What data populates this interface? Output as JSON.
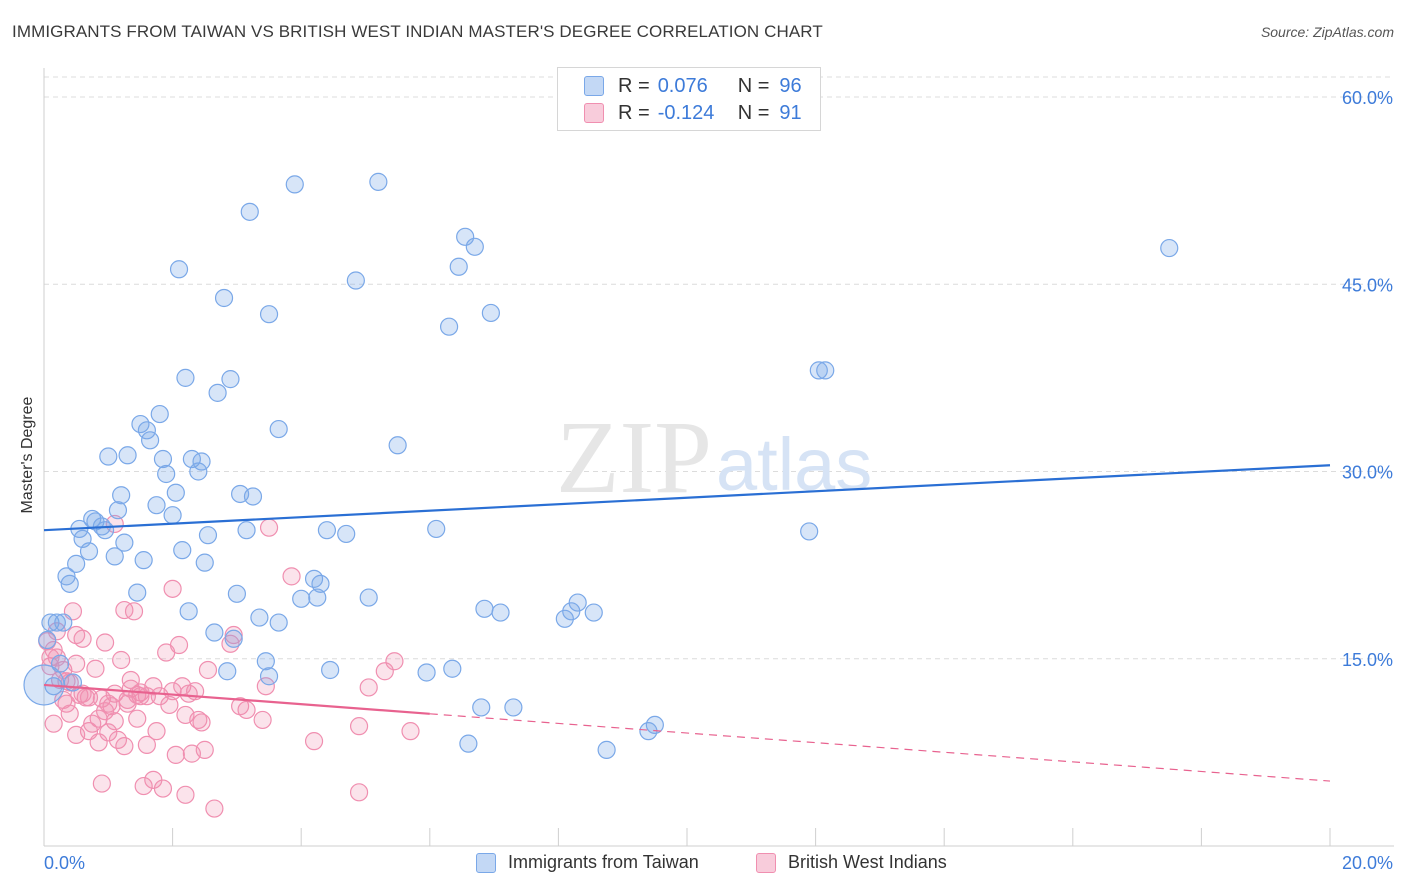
{
  "header": {
    "title": "IMMIGRANTS FROM TAIWAN VS BRITISH WEST INDIAN MASTER'S DEGREE CORRELATION CHART",
    "source": "Source: ZipAtlas.com"
  },
  "watermark": {
    "zip": "ZIP",
    "atlas": "atlas"
  },
  "colors": {
    "blue": "#7aa8e8",
    "blue_fill": "rgba(122,168,232,0.30)",
    "blue_line": "#2a6fd4",
    "pink": "#f08fb0",
    "pink_fill": "rgba(240,143,176,0.25)",
    "pink_line": "#e8628f",
    "axis_text": "#3d7bd9",
    "grid": "#dcdcdc"
  },
  "legend": {
    "rows": [
      {
        "r_label": "R =",
        "r_value": "0.076",
        "n_label": "N =",
        "n_value": "96"
      },
      {
        "r_label": "R =",
        "r_value": "-0.124",
        "n_label": "N =",
        "n_value": "91"
      }
    ],
    "series_names": [
      "Immigrants from Taiwan",
      "British West Indians"
    ]
  },
  "chart_data": {
    "type": "scatter",
    "title": "IMMIGRANTS FROM TAIWAN VS BRITISH WEST INDIAN MASTER'S DEGREE CORRELATION CHART",
    "xlabel": "",
    "ylabel": "Master's Degree",
    "xlim": [
      0,
      20
    ],
    "ylim": [
      0,
      60
    ],
    "x_tick_labels": [
      "0.0%",
      "20.0%"
    ],
    "y_ticks": [
      15,
      30,
      45,
      60
    ],
    "y_tick_labels": [
      "15.0%",
      "30.0%",
      "45.0%",
      "60.0%"
    ],
    "grid": true,
    "series": [
      {
        "name": "Immigrants from Taiwan",
        "R": 0.076,
        "N": 96,
        "trend": {
          "x": [
            0,
            20
          ],
          "y": [
            25.3,
            30.5
          ],
          "dashed_from": null
        },
        "points": [
          [
            0.1,
            17.9
          ],
          [
            0.2,
            17.9
          ],
          [
            0.3,
            17.9
          ],
          [
            0.35,
            21.6
          ],
          [
            0.4,
            21.0
          ],
          [
            0.5,
            22.6
          ],
          [
            0.55,
            25.4
          ],
          [
            0.6,
            24.6
          ],
          [
            0.7,
            23.6
          ],
          [
            0.75,
            26.2
          ],
          [
            0.8,
            26.0
          ],
          [
            0.9,
            25.6
          ],
          [
            0.95,
            25.3
          ],
          [
            1.0,
            31.2
          ],
          [
            1.1,
            23.2
          ],
          [
            1.15,
            26.9
          ],
          [
            1.2,
            28.1
          ],
          [
            1.25,
            24.3
          ],
          [
            1.3,
            31.3
          ],
          [
            1.45,
            20.3
          ],
          [
            1.5,
            33.8
          ],
          [
            1.55,
            22.9
          ],
          [
            1.6,
            33.3
          ],
          [
            1.65,
            32.5
          ],
          [
            1.75,
            27.3
          ],
          [
            1.8,
            34.6
          ],
          [
            1.85,
            31.0
          ],
          [
            1.9,
            29.8
          ],
          [
            2.0,
            26.5
          ],
          [
            2.05,
            28.3
          ],
          [
            2.1,
            46.2
          ],
          [
            2.15,
            23.7
          ],
          [
            2.2,
            37.5
          ],
          [
            2.25,
            18.8
          ],
          [
            2.3,
            31.0
          ],
          [
            2.4,
            30.0
          ],
          [
            2.45,
            30.8
          ],
          [
            2.5,
            22.7
          ],
          [
            2.55,
            24.9
          ],
          [
            2.65,
            17.1
          ],
          [
            2.7,
            36.3
          ],
          [
            2.8,
            43.9
          ],
          [
            2.85,
            14.0
          ],
          [
            2.9,
            37.4
          ],
          [
            2.95,
            16.6
          ],
          [
            3.0,
            20.2
          ],
          [
            3.05,
            28.2
          ],
          [
            3.15,
            25.3
          ],
          [
            3.2,
            50.8
          ],
          [
            3.25,
            28.0
          ],
          [
            3.35,
            18.3
          ],
          [
            3.45,
            14.8
          ],
          [
            3.5,
            13.6
          ],
          [
            3.5,
            42.6
          ],
          [
            3.65,
            17.9
          ],
          [
            3.65,
            33.4
          ],
          [
            3.9,
            53.0
          ],
          [
            4.0,
            19.8
          ],
          [
            4.2,
            21.4
          ],
          [
            4.25,
            19.9
          ],
          [
            4.3,
            21.0
          ],
          [
            4.4,
            25.3
          ],
          [
            4.45,
            14.1
          ],
          [
            4.7,
            25.0
          ],
          [
            4.85,
            45.3
          ],
          [
            5.05,
            19.9
          ],
          [
            5.2,
            53.2
          ],
          [
            5.5,
            32.1
          ],
          [
            5.95,
            13.9
          ],
          [
            6.1,
            25.4
          ],
          [
            6.3,
            41.6
          ],
          [
            6.35,
            14.2
          ],
          [
            6.45,
            46.4
          ],
          [
            6.55,
            48.8
          ],
          [
            6.6,
            8.2
          ],
          [
            6.7,
            48.0
          ],
          [
            6.8,
            11.1
          ],
          [
            6.85,
            19.0
          ],
          [
            6.95,
            42.7
          ],
          [
            7.1,
            18.7
          ],
          [
            7.3,
            11.1
          ],
          [
            8.1,
            18.2
          ],
          [
            8.2,
            18.8
          ],
          [
            8.3,
            19.5
          ],
          [
            8.55,
            18.7
          ],
          [
            8.75,
            7.7
          ],
          [
            9.4,
            9.2
          ],
          [
            9.5,
            9.7
          ],
          [
            11.9,
            25.2
          ],
          [
            12.05,
            38.1
          ],
          [
            12.15,
            38.1
          ],
          [
            17.5,
            47.9
          ],
          [
            0.15,
            12.8
          ],
          [
            0.25,
            14.6
          ],
          [
            0.05,
            16.5
          ],
          [
            0.45,
            13.1
          ]
        ]
      },
      {
        "name": "British West Indians",
        "R": -0.124,
        "N": 91,
        "trend": {
          "x": [
            0,
            20
          ],
          "y": [
            12.9,
            5.2
          ],
          "dashed_from": 6.0
        },
        "points": [
          [
            0.05,
            16.4
          ],
          [
            0.1,
            15.1
          ],
          [
            0.1,
            14.4
          ],
          [
            0.15,
            15.7
          ],
          [
            0.2,
            17.2
          ],
          [
            0.25,
            13.3
          ],
          [
            0.3,
            14.1
          ],
          [
            0.35,
            13.2
          ],
          [
            0.4,
            10.6
          ],
          [
            0.45,
            18.8
          ],
          [
            0.5,
            14.6
          ],
          [
            0.5,
            8.9
          ],
          [
            0.55,
            12.1
          ],
          [
            0.6,
            16.6
          ],
          [
            0.65,
            11.9
          ],
          [
            0.7,
            9.2
          ],
          [
            0.75,
            9.8
          ],
          [
            0.8,
            14.2
          ],
          [
            0.85,
            10.2
          ],
          [
            0.85,
            8.3
          ],
          [
            0.9,
            11.8
          ],
          [
            0.9,
            5.0
          ],
          [
            0.95,
            16.3
          ],
          [
            1.0,
            9.1
          ],
          [
            1.05,
            11.2
          ],
          [
            1.1,
            10.0
          ],
          [
            1.1,
            12.2
          ],
          [
            1.2,
            14.9
          ],
          [
            1.25,
            18.9
          ],
          [
            1.25,
            8.0
          ],
          [
            1.3,
            11.4
          ],
          [
            1.35,
            13.3
          ],
          [
            1.35,
            12.6
          ],
          [
            1.4,
            18.8
          ],
          [
            1.45,
            10.2
          ],
          [
            1.5,
            12.3
          ],
          [
            1.5,
            12.0
          ],
          [
            1.55,
            4.8
          ],
          [
            1.6,
            12.0
          ],
          [
            1.6,
            8.1
          ],
          [
            1.7,
            12.8
          ],
          [
            1.75,
            9.2
          ],
          [
            1.8,
            12.0
          ],
          [
            1.85,
            4.6
          ],
          [
            1.9,
            15.5
          ],
          [
            1.95,
            11.3
          ],
          [
            2.0,
            20.6
          ],
          [
            2.05,
            7.3
          ],
          [
            2.1,
            16.1
          ],
          [
            2.15,
            12.8
          ],
          [
            2.2,
            10.5
          ],
          [
            2.25,
            12.2
          ],
          [
            2.3,
            7.4
          ],
          [
            2.35,
            12.4
          ],
          [
            2.4,
            10.1
          ],
          [
            2.45,
            9.9
          ],
          [
            2.5,
            7.7
          ],
          [
            2.55,
            14.1
          ],
          [
            2.65,
            3.0
          ],
          [
            2.9,
            16.2
          ],
          [
            2.95,
            16.9
          ],
          [
            3.05,
            11.2
          ],
          [
            3.15,
            10.9
          ],
          [
            3.4,
            10.1
          ],
          [
            3.45,
            12.8
          ],
          [
            3.5,
            25.5
          ],
          [
            3.85,
            21.6
          ],
          [
            4.2,
            8.4
          ],
          [
            4.9,
            9.6
          ],
          [
            4.9,
            4.3
          ],
          [
            5.05,
            12.7
          ],
          [
            5.3,
            14.0
          ],
          [
            5.45,
            14.8
          ],
          [
            5.7,
            9.2
          ],
          [
            0.3,
            11.7
          ],
          [
            0.6,
            12.2
          ],
          [
            1.0,
            11.4
          ],
          [
            1.15,
            8.5
          ],
          [
            0.4,
            13.1
          ],
          [
            0.2,
            15.1
          ],
          [
            0.7,
            11.9
          ],
          [
            0.95,
            10.8
          ],
          [
            1.3,
            11.7
          ],
          [
            1.7,
            5.3
          ],
          [
            2.0,
            12.4
          ],
          [
            2.2,
            4.1
          ],
          [
            0.5,
            16.9
          ],
          [
            0.15,
            9.8
          ],
          [
            1.1,
            25.8
          ],
          [
            1.45,
            12.1
          ],
          [
            0.35,
            11.4
          ]
        ]
      }
    ]
  }
}
